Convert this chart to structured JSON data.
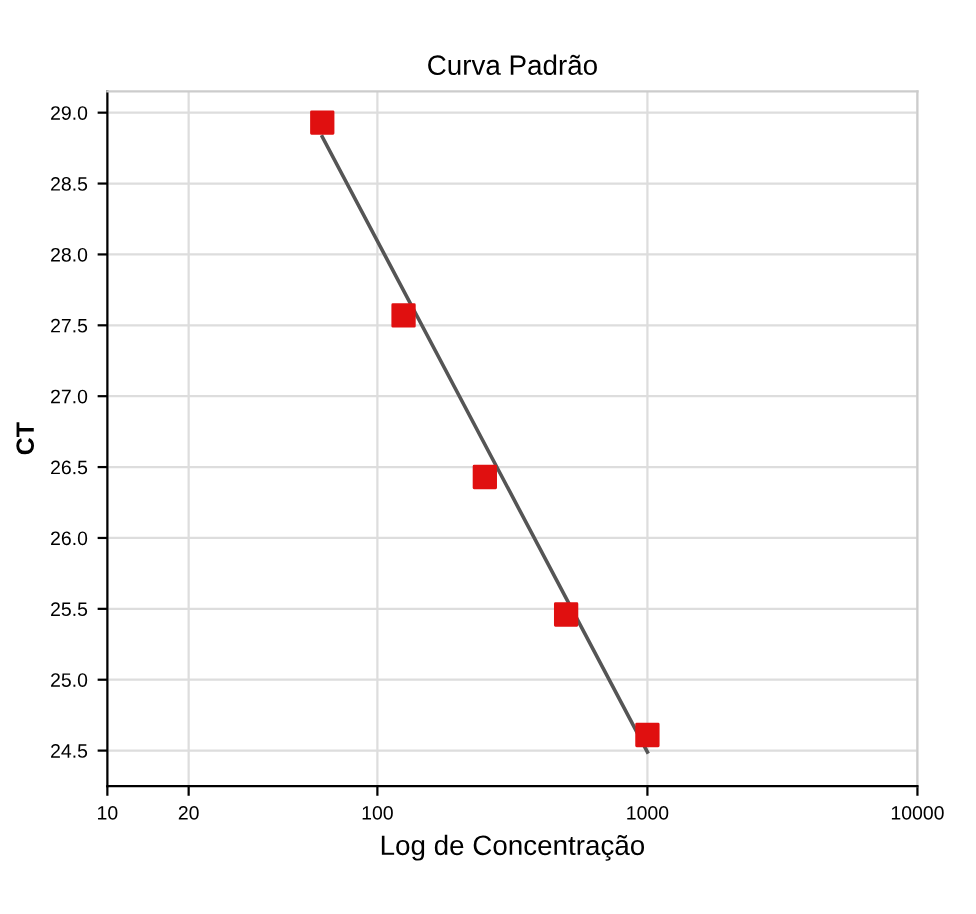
{
  "chart_data": {
    "type": "scatter",
    "title": "Curva Padrão",
    "xlabel": "Log de Concentração",
    "ylabel": "CT",
    "log": "x",
    "xlim": [
      10,
      10000
    ],
    "xticks": [
      10,
      20,
      100,
      1000,
      10000
    ],
    "ylim": [
      24.25,
      29.15
    ],
    "yticks": [
      {
        "value": 24.5,
        "label": "24.5"
      },
      {
        "value": 25.0,
        "label": "25.0"
      },
      {
        "value": 25.5,
        "label": "25.5"
      },
      {
        "value": 26.0,
        "label": "26.0"
      },
      {
        "value": 26.5,
        "label": "26.5"
      },
      {
        "value": 27.0,
        "label": "27.0"
      },
      {
        "value": 27.5,
        "label": "27.5"
      },
      {
        "value": 28.0,
        "label": "28.0"
      },
      {
        "value": 28.5,
        "label": "28.5"
      },
      {
        "value": 29.0,
        "label": "29.0"
      }
    ],
    "grid": true,
    "series": [
      {
        "type": "line",
        "color": "#555555",
        "x": [
          62.5,
          1000
        ],
        "values": [
          28.83,
          24.49
        ]
      },
      {
        "marker": "square",
        "color": "#e01010",
        "x": [
          62.5,
          125,
          250,
          500,
          1000
        ],
        "values": [
          28.93,
          27.57,
          26.43,
          25.46,
          24.61
        ]
      }
    ]
  }
}
